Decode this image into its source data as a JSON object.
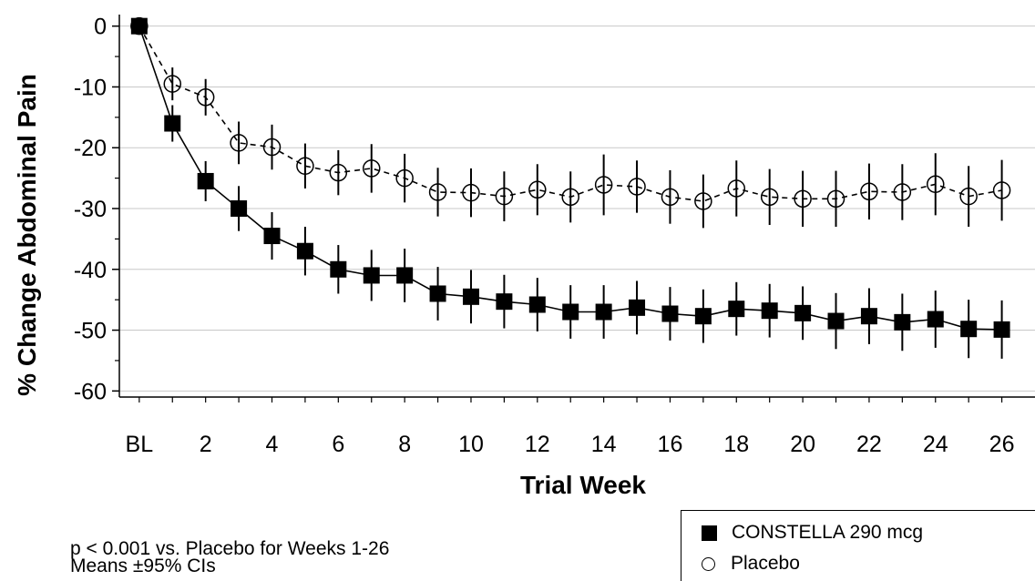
{
  "chart_data": {
    "type": "line",
    "title": "",
    "xlabel": "Trial Week",
    "ylabel": "% Change Abdominal Pain",
    "x_tick_labels": [
      "BL",
      "2",
      "4",
      "6",
      "8",
      "10",
      "12",
      "14",
      "16",
      "18",
      "20",
      "22",
      "24",
      "26"
    ],
    "x_tick_values": [
      0,
      2,
      4,
      6,
      8,
      10,
      12,
      14,
      16,
      18,
      20,
      22,
      24,
      26
    ],
    "y_ticks": [
      0,
      -10,
      -20,
      -30,
      -40,
      -50,
      -60
    ],
    "y_minor_ticks": [
      -5,
      -15,
      -25,
      -35,
      -45,
      -55
    ],
    "xlim": [
      -0.6,
      27
    ],
    "ylim": [
      -61,
      1
    ],
    "grid": true,
    "legend_position": "bottom-right",
    "x": [
      0,
      1,
      2,
      3,
      4,
      5,
      6,
      7,
      8,
      9,
      10,
      11,
      12,
      13,
      14,
      15,
      16,
      17,
      18,
      19,
      20,
      21,
      22,
      23,
      24,
      25,
      26
    ],
    "series": [
      {
        "name": "CONSTELLA 290 mcg",
        "marker": "filled-square",
        "line_style": "solid",
        "values": [
          0,
          -16,
          -25.5,
          -30,
          -34.5,
          -37,
          -40,
          -41,
          -41,
          -44,
          -44.5,
          -45.3,
          -45.8,
          -47,
          -47,
          -46.3,
          -47.3,
          -47.7,
          -46.5,
          -46.8,
          -47.2,
          -48.5,
          -47.7,
          -48.7,
          -48.2,
          -49.8,
          -49.9
        ],
        "ci_half_width": [
          0,
          3,
          3.3,
          3.7,
          3.9,
          4,
          4,
          4.2,
          4.4,
          4.4,
          4.4,
          4.4,
          4.4,
          4.4,
          4.4,
          4.4,
          4.4,
          4.4,
          4.4,
          4.4,
          4.4,
          4.6,
          4.6,
          4.7,
          4.7,
          4.8,
          4.8
        ]
      },
      {
        "name": "Placebo",
        "marker": "open-circle",
        "line_style": "dashed",
        "values": [
          0,
          -9.5,
          -11.7,
          -19.2,
          -19.9,
          -23,
          -24.1,
          -23.4,
          -25,
          -27.3,
          -27.4,
          -28,
          -26.9,
          -28.1,
          -26.1,
          -26.4,
          -28.1,
          -28.8,
          -26.7,
          -28.1,
          -28.4,
          -28.4,
          -27.2,
          -27.3,
          -26,
          -28,
          -27
        ]
      }
    ],
    "placebo_ci_half_width": [
      0,
      2.7,
      3,
      3.5,
      3.7,
      3.7,
      3.7,
      4,
      4,
      4,
      4,
      4.1,
      4.2,
      4.2,
      5,
      4.3,
      4.4,
      4.4,
      4.6,
      4.6,
      4.6,
      4.6,
      4.6,
      4.6,
      5.1,
      5,
      5
    ]
  },
  "notes": {
    "p_value": "p < 0.001 vs. Placebo for Weeks 1-26",
    "ci": "Means ±95% CIs"
  },
  "legend": {
    "items": [
      {
        "label": "CONSTELLA 290 mcg",
        "symbol": "filled-square"
      },
      {
        "label": "Placebo",
        "symbol": "open-circle"
      }
    ]
  },
  "colors": {
    "line": "#000000",
    "grid": "#c8c8c8",
    "background": "#ffffff"
  }
}
